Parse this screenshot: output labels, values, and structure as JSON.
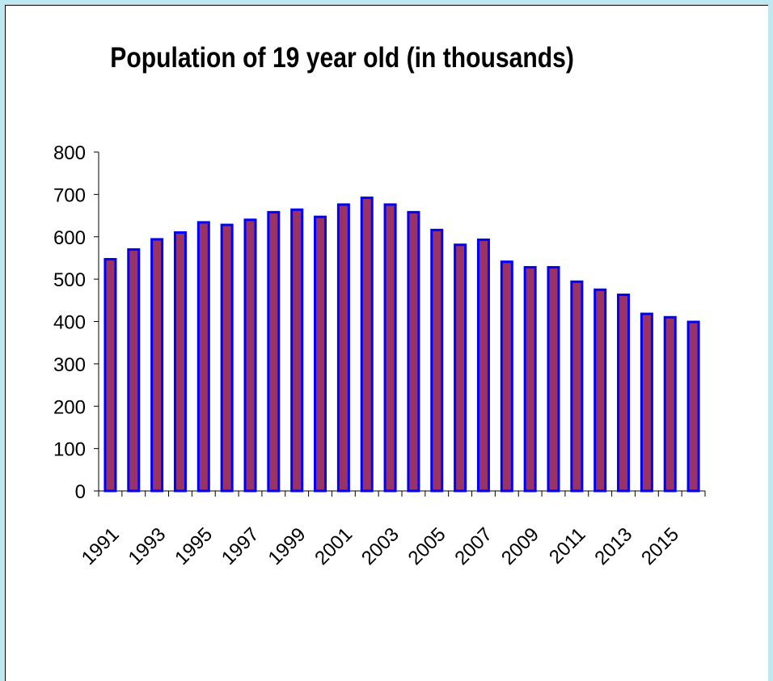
{
  "chart_data": {
    "type": "bar",
    "title": "Population of 19 year old (in thousands)",
    "xlabel": "",
    "ylabel": "",
    "ylim": [
      0,
      800
    ],
    "yticks": [
      0,
      100,
      200,
      300,
      400,
      500,
      600,
      700,
      800
    ],
    "categories": [
      "1991",
      "1992",
      "1993",
      "1994",
      "1995",
      "1996",
      "1997",
      "1998",
      "1999",
      "2000",
      "2001",
      "2002",
      "2003",
      "2004",
      "2005",
      "2006",
      "2007",
      "2008",
      "2009",
      "2010",
      "2011",
      "2012",
      "2013",
      "2014",
      "2015",
      "2016"
    ],
    "x_tick_labels": [
      "1991",
      "1993",
      "1995",
      "1997",
      "1999",
      "2001",
      "2003",
      "2005",
      "2007",
      "2009",
      "2011",
      "2013",
      "2015"
    ],
    "values": [
      547,
      570,
      594,
      610,
      634,
      628,
      640,
      658,
      664,
      647,
      676,
      692,
      676,
      658,
      616,
      581,
      593,
      541,
      528,
      528,
      494,
      475,
      463,
      418,
      410,
      399
    ],
    "grid": false,
    "legend": "none",
    "colors": {
      "bar_fill": "#993366",
      "bar_border": "#0000ff",
      "background": "#ffffff",
      "page_background": "#bfe9f0"
    }
  }
}
